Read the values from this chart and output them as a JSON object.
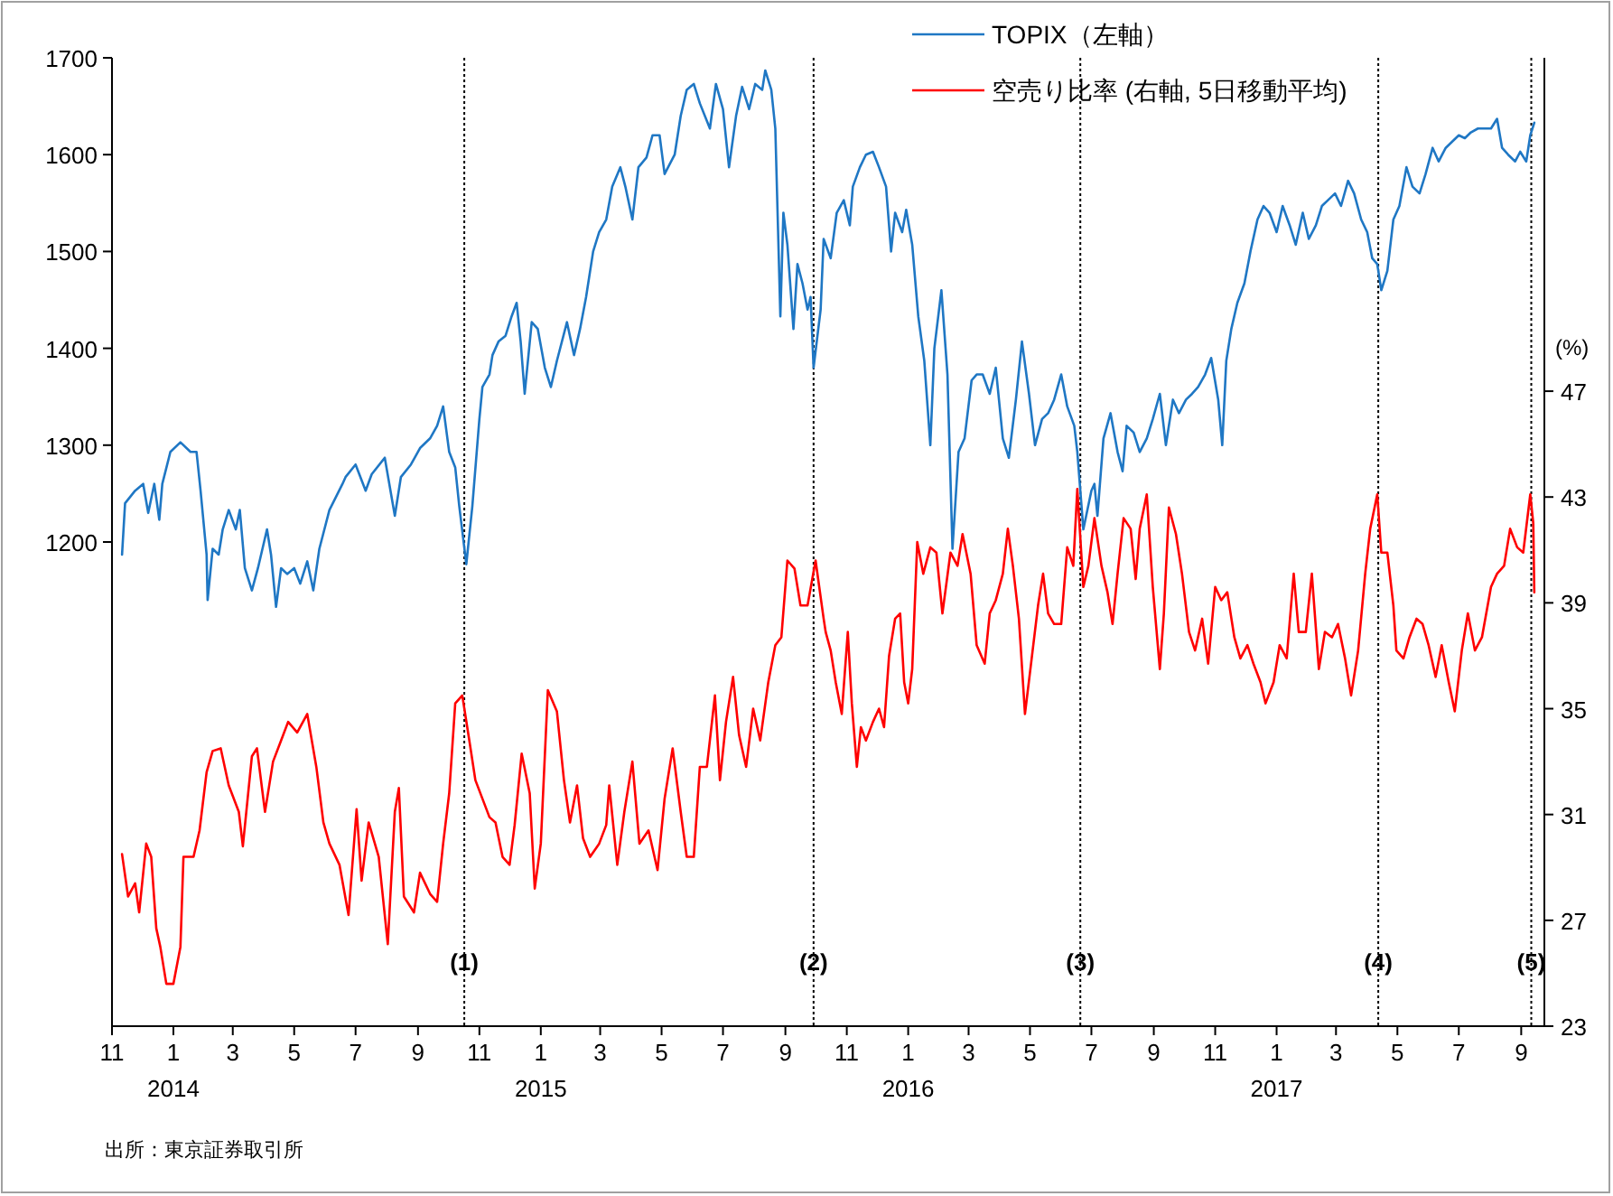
{
  "chart_data": {
    "type": "line",
    "xlim": [
      "2013-11-01",
      "2017-09-24"
    ],
    "xticks": [
      {
        "value": "2013-11",
        "label": "11"
      },
      {
        "value": "2014-01",
        "label": "1\n2014"
      },
      {
        "value": "2014-03",
        "label": "3"
      },
      {
        "value": "2014-05",
        "label": "5"
      },
      {
        "value": "2014-07",
        "label": "7"
      },
      {
        "value": "2014-09",
        "label": "9"
      },
      {
        "value": "2014-11",
        "label": "11"
      },
      {
        "value": "2015-01",
        "label": "1\n2015"
      },
      {
        "value": "2015-03",
        "label": "3"
      },
      {
        "value": "2015-05",
        "label": "5"
      },
      {
        "value": "2015-07",
        "label": "7"
      },
      {
        "value": "2015-09",
        "label": "9"
      },
      {
        "value": "2015-11",
        "label": "11"
      },
      {
        "value": "2016-01",
        "label": "1\n2016"
      },
      {
        "value": "2016-03",
        "label": "3"
      },
      {
        "value": "2016-05",
        "label": "5"
      },
      {
        "value": "2016-07",
        "label": "7"
      },
      {
        "value": "2016-09",
        "label": "9"
      },
      {
        "value": "2016-11",
        "label": "11"
      },
      {
        "value": "2017-01",
        "label": "1\n2017"
      },
      {
        "value": "2017-03",
        "label": "3"
      },
      {
        "value": "2017-05",
        "label": "5"
      },
      {
        "value": "2017-07",
        "label": "7"
      },
      {
        "value": "2017-09",
        "label": "9"
      }
    ],
    "ylim": [
      700,
      1700
    ],
    "yticks": [
      1200,
      1300,
      1400,
      1500,
      1600,
      1700
    ],
    "y2lim": [
      23,
      59.6
    ],
    "y2ticks": [
      23,
      27,
      31,
      35,
      39,
      43,
      47
    ],
    "y2label": "(%)",
    "legend": "top right",
    "ref_lines": [
      {
        "axis": "x",
        "value": "2014-10-17",
        "label": "(1)",
        "color": "#000000",
        "line_style": "dotted"
      },
      {
        "axis": "x",
        "value": "2015-09-29",
        "label": "(2)",
        "color": "#000000",
        "line_style": "dotted"
      },
      {
        "axis": "x",
        "value": "2016-06-20",
        "label": "(3)",
        "color": "#000000",
        "line_style": "dotted"
      },
      {
        "axis": "x",
        "value": "2017-04-12",
        "label": "(4)",
        "color": "#000000",
        "line_style": "dotted"
      },
      {
        "axis": "x",
        "value": "2017-09-11",
        "label": "(5)",
        "color": "#000000",
        "line_style": "dotted"
      }
    ],
    "annotations": [
      "出所：東京証券取引所"
    ],
    "series": [
      {
        "name": "TOPIX（左軸）",
        "color": "#1f77c4",
        "axis": "y",
        "x": [
          "2013-11-11",
          "2013-11-14",
          "2013-11-24",
          "2013-12-02",
          "2013-12-07",
          "2013-12-13",
          "2013-12-18",
          "2013-12-21",
          "2013-12-29",
          "2014-01-08",
          "2014-01-18",
          "2014-01-24",
          "2014-01-28",
          "2014-02-03",
          "2014-02-04",
          "2014-02-09",
          "2014-02-15",
          "2014-02-19",
          "2014-02-25",
          "2014-03-04",
          "2014-03-08",
          "2014-03-13",
          "2014-03-20",
          "2014-03-26",
          "2014-04-04",
          "2014-04-08",
          "2014-04-13",
          "2014-04-18",
          "2014-04-24",
          "2014-05-01",
          "2014-05-07",
          "2014-05-14",
          "2014-05-20",
          "2014-05-26",
          "2014-06-05",
          "2014-06-18",
          "2014-06-21",
          "2014-07-01",
          "2014-07-11",
          "2014-07-17",
          "2014-07-30",
          "2014-08-09",
          "2014-08-15",
          "2014-08-25",
          "2014-09-03",
          "2014-09-13",
          "2014-09-20",
          "2014-09-26",
          "2014-10-02",
          "2014-10-08",
          "2014-10-12",
          "2014-10-19",
          "2014-10-25",
          "2014-11-01",
          "2014-11-04",
          "2014-11-11",
          "2014-11-14",
          "2014-11-20",
          "2014-11-27",
          "2014-12-03",
          "2014-12-08",
          "2014-12-12",
          "2014-12-16",
          "2014-12-23",
          "2014-12-29",
          "2015-01-05",
          "2015-01-11",
          "2015-01-17",
          "2015-01-27",
          "2015-02-03",
          "2015-02-09",
          "2015-02-15",
          "2015-02-22",
          "2015-02-28",
          "2015-03-07",
          "2015-03-13",
          "2015-03-21",
          "2015-03-26",
          "2015-04-02",
          "2015-04-08",
          "2015-04-16",
          "2015-04-22",
          "2015-04-29",
          "2015-05-04",
          "2015-05-14",
          "2015-05-20",
          "2015-05-26",
          "2015-06-02",
          "2015-06-08",
          "2015-06-18",
          "2015-06-24",
          "2015-07-01",
          "2015-07-07",
          "2015-07-14",
          "2015-07-20",
          "2015-07-27",
          "2015-08-02",
          "2015-08-09",
          "2015-08-12",
          "2015-08-18",
          "2015-08-22",
          "2015-08-27",
          "2015-08-30",
          "2015-09-03",
          "2015-09-09",
          "2015-09-13",
          "2015-09-18",
          "2015-09-23",
          "2015-09-26",
          "2015-09-29",
          "2015-10-06",
          "2015-10-09",
          "2015-10-16",
          "2015-10-22",
          "2015-10-29",
          "2015-11-04",
          "2015-11-07",
          "2015-11-14",
          "2015-11-20",
          "2015-11-27",
          "2015-12-03",
          "2015-12-10",
          "2015-12-15",
          "2015-12-19",
          "2015-12-26",
          "2015-12-30",
          "2016-01-05",
          "2016-01-11",
          "2016-01-17",
          "2016-01-23",
          "2016-01-27",
          "2016-02-03",
          "2016-02-09",
          "2016-02-14",
          "2016-02-20",
          "2016-02-26",
          "2016-03-04",
          "2016-03-09",
          "2016-03-15",
          "2016-03-22",
          "2016-03-28",
          "2016-04-04",
          "2016-04-10",
          "2016-04-17",
          "2016-04-23",
          "2016-04-30",
          "2016-05-06",
          "2016-05-13",
          "2016-05-19",
          "2016-05-25",
          "2016-06-01",
          "2016-06-07",
          "2016-06-14",
          "2016-06-17",
          "2016-06-23",
          "2016-07-01",
          "2016-07-04",
          "2016-07-07",
          "2016-07-13",
          "2016-07-20",
          "2016-07-27",
          "2016-08-01",
          "2016-08-05",
          "2016-08-12",
          "2016-08-18",
          "2016-08-25",
          "2016-08-31",
          "2016-09-07",
          "2016-09-13",
          "2016-09-20",
          "2016-09-26",
          "2016-10-03",
          "2016-10-09",
          "2016-10-15",
          "2016-10-22",
          "2016-10-28",
          "2016-11-04",
          "2016-11-08",
          "2016-11-12",
          "2016-11-17",
          "2016-11-23",
          "2016-11-30",
          "2016-12-06",
          "2016-12-13",
          "2016-12-19",
          "2016-12-25",
          "2017-01-01",
          "2017-01-07",
          "2017-01-14",
          "2017-01-20",
          "2017-01-27",
          "2017-02-02",
          "2017-02-09",
          "2017-02-15",
          "2017-02-21",
          "2017-02-28",
          "2017-03-06",
          "2017-03-13",
          "2017-03-19",
          "2017-03-26",
          "2017-04-01",
          "2017-04-06",
          "2017-04-11",
          "2017-04-15",
          "2017-04-21",
          "2017-04-27",
          "2017-05-03",
          "2017-05-10",
          "2017-05-16",
          "2017-05-23",
          "2017-05-29",
          "2017-06-05",
          "2017-06-11",
          "2017-06-18",
          "2017-06-24",
          "2017-07-01",
          "2017-07-07",
          "2017-07-13",
          "2017-07-20",
          "2017-07-26",
          "2017-08-02",
          "2017-08-08",
          "2017-08-13",
          "2017-08-19",
          "2017-08-26",
          "2017-08-31",
          "2017-09-06",
          "2017-09-10",
          "2017-09-14"
        ],
        "values": [
          1187,
          1240,
          1253,
          1260,
          1230,
          1260,
          1223,
          1260,
          1293,
          1303,
          1293,
          1293,
          1253,
          1187,
          1140,
          1193,
          1187,
          1213,
          1233,
          1213,
          1233,
          1173,
          1150,
          1173,
          1213,
          1187,
          1133,
          1173,
          1167,
          1173,
          1157,
          1180,
          1150,
          1193,
          1233,
          1260,
          1267,
          1280,
          1253,
          1270,
          1287,
          1227,
          1267,
          1280,
          1297,
          1307,
          1320,
          1340,
          1293,
          1277,
          1237,
          1177,
          1237,
          1327,
          1360,
          1373,
          1393,
          1407,
          1413,
          1433,
          1447,
          1407,
          1353,
          1427,
          1420,
          1380,
          1360,
          1387,
          1427,
          1393,
          1420,
          1453,
          1500,
          1520,
          1533,
          1567,
          1587,
          1567,
          1533,
          1587,
          1597,
          1620,
          1620,
          1580,
          1600,
          1640,
          1667,
          1673,
          1653,
          1627,
          1673,
          1647,
          1587,
          1640,
          1670,
          1647,
          1673,
          1667,
          1687,
          1667,
          1627,
          1433,
          1540,
          1507,
          1420,
          1487,
          1467,
          1440,
          1453,
          1380,
          1440,
          1513,
          1493,
          1540,
          1553,
          1527,
          1567,
          1587,
          1600,
          1603,
          1587,
          1567,
          1500,
          1540,
          1520,
          1543,
          1507,
          1433,
          1387,
          1300,
          1400,
          1460,
          1373,
          1193,
          1293,
          1307,
          1367,
          1373,
          1373,
          1353,
          1380,
          1307,
          1287,
          1347,
          1407,
          1353,
          1300,
          1327,
          1333,
          1347,
          1373,
          1340,
          1320,
          1293,
          1213,
          1253,
          1260,
          1227,
          1307,
          1333,
          1293,
          1273,
          1320,
          1313,
          1293,
          1307,
          1327,
          1353,
          1300,
          1347,
          1333,
          1347,
          1353,
          1360,
          1373,
          1390,
          1347,
          1300,
          1387,
          1420,
          1447,
          1467,
          1500,
          1533,
          1547,
          1540,
          1520,
          1547,
          1527,
          1507,
          1540,
          1513,
          1527,
          1547,
          1553,
          1560,
          1547,
          1573,
          1560,
          1533,
          1520,
          1493,
          1487,
          1460,
          1480,
          1533,
          1547,
          1587,
          1567,
          1560,
          1580,
          1607,
          1593,
          1607,
          1613,
          1620,
          1617,
          1623,
          1627,
          1627,
          1627,
          1637,
          1607,
          1600,
          1593,
          1603,
          1593,
          1620,
          1633
        ]
      },
      {
        "name": "空売り比率 (右軸, 5日移動平均)",
        "color": "#ff0000",
        "axis": "y2",
        "x": [
          "2013-11-11",
          "2013-11-17",
          "2013-11-24",
          "2013-11-28",
          "2013-12-05",
          "2013-12-10",
          "2013-12-15",
          "2013-12-19",
          "2013-12-25",
          "2014-01-01",
          "2014-01-08",
          "2014-01-11",
          "2014-01-21",
          "2014-01-27",
          "2014-02-03",
          "2014-02-09",
          "2014-02-17",
          "2014-02-25",
          "2014-03-07",
          "2014-03-11",
          "2014-03-20",
          "2014-03-25",
          "2014-04-02",
          "2014-04-10",
          "2014-04-18",
          "2014-04-25",
          "2014-05-04",
          "2014-05-14",
          "2014-05-23",
          "2014-05-30",
          "2014-06-05",
          "2014-06-15",
          "2014-06-24",
          "2014-07-02",
          "2014-07-07",
          "2014-07-14",
          "2014-07-24",
          "2014-08-02",
          "2014-08-09",
          "2014-08-13",
          "2014-08-18",
          "2014-08-28",
          "2014-09-03",
          "2014-09-13",
          "2014-09-20",
          "2014-09-26",
          "2014-10-02",
          "2014-10-08",
          "2014-10-15",
          "2014-10-22",
          "2014-10-28",
          "2014-11-04",
          "2014-11-11",
          "2014-11-17",
          "2014-11-24",
          "2014-12-01",
          "2014-12-06",
          "2014-12-13",
          "2014-12-21",
          "2014-12-26",
          "2015-01-01",
          "2015-01-08",
          "2015-01-17",
          "2015-01-24",
          "2015-01-30",
          "2015-02-06",
          "2015-02-12",
          "2015-02-19",
          "2015-02-28",
          "2015-03-07",
          "2015-03-10",
          "2015-03-18",
          "2015-03-25",
          "2015-04-02",
          "2015-04-09",
          "2015-04-18",
          "2015-04-27",
          "2015-05-04",
          "2015-05-12",
          "2015-05-20",
          "2015-05-26",
          "2015-06-02",
          "2015-06-08",
          "2015-06-15",
          "2015-06-23",
          "2015-06-28",
          "2015-07-04",
          "2015-07-11",
          "2015-07-17",
          "2015-07-24",
          "2015-07-31",
          "2015-08-07",
          "2015-08-15",
          "2015-08-22",
          "2015-08-28",
          "2015-09-03",
          "2015-09-10",
          "2015-09-16",
          "2015-09-23",
          "2015-10-01",
          "2015-10-09",
          "2015-10-11",
          "2015-10-16",
          "2015-10-21",
          "2015-10-27",
          "2015-11-02",
          "2015-11-06",
          "2015-11-11",
          "2015-11-15",
          "2015-11-20",
          "2015-11-27",
          "2015-12-03",
          "2015-12-08",
          "2015-12-13",
          "2015-12-19",
          "2015-12-24",
          "2015-12-28",
          "2016-01-01",
          "2016-01-05",
          "2016-01-10",
          "2016-01-16",
          "2016-01-23",
          "2016-01-29",
          "2016-02-04",
          "2016-02-12",
          "2016-02-19",
          "2016-02-24",
          "2016-03-03",
          "2016-03-09",
          "2016-03-17",
          "2016-03-22",
          "2016-03-28",
          "2016-04-04",
          "2016-04-09",
          "2016-04-14",
          "2016-04-20",
          "2016-04-26",
          "2016-05-03",
          "2016-05-09",
          "2016-05-14",
          "2016-05-19",
          "2016-05-25",
          "2016-06-01",
          "2016-06-07",
          "2016-06-13",
          "2016-06-17",
          "2016-06-23",
          "2016-06-28",
          "2016-07-04",
          "2016-07-11",
          "2016-07-17",
          "2016-07-22",
          "2016-07-27",
          "2016-08-02",
          "2016-08-09",
          "2016-08-14",
          "2016-08-18",
          "2016-08-25",
          "2016-08-31",
          "2016-09-07",
          "2016-09-11",
          "2016-09-16",
          "2016-09-23",
          "2016-09-29",
          "2016-10-06",
          "2016-10-12",
          "2016-10-19",
          "2016-10-25",
          "2016-11-01",
          "2016-11-07",
          "2016-11-13",
          "2016-11-20",
          "2016-11-26",
          "2016-12-03",
          "2016-12-09",
          "2016-12-16",
          "2016-12-21",
          "2016-12-29",
          "2017-01-04",
          "2017-01-11",
          "2017-01-18",
          "2017-01-23",
          "2017-01-30",
          "2017-02-05",
          "2017-02-12",
          "2017-02-18",
          "2017-02-25",
          "2017-03-03",
          "2017-03-10",
          "2017-03-16",
          "2017-03-23",
          "2017-03-30",
          "2017-04-04",
          "2017-04-11",
          "2017-04-15",
          "2017-04-21",
          "2017-04-27",
          "2017-04-30",
          "2017-05-07",
          "2017-05-13",
          "2017-05-20",
          "2017-05-26",
          "2017-06-01",
          "2017-06-08",
          "2017-06-14",
          "2017-06-21",
          "2017-06-27",
          "2017-07-04",
          "2017-07-10",
          "2017-07-17",
          "2017-07-24",
          "2017-08-02",
          "2017-08-08",
          "2017-08-15",
          "2017-08-21",
          "2017-08-28",
          "2017-09-03",
          "2017-09-10",
          "2017-09-13",
          "2017-09-14"
        ],
        "values": [
          29.5,
          27.9,
          28.4,
          27.3,
          29.9,
          29.4,
          26.7,
          26.0,
          24.6,
          24.6,
          26.0,
          29.4,
          29.4,
          30.4,
          32.6,
          33.4,
          33.5,
          32.1,
          31.1,
          29.8,
          33.2,
          33.5,
          31.1,
          33.0,
          33.8,
          34.5,
          34.1,
          34.8,
          32.8,
          30.7,
          29.9,
          29.1,
          27.2,
          31.2,
          28.5,
          30.7,
          29.4,
          26.1,
          31.1,
          32.0,
          27.9,
          27.3,
          28.8,
          28.0,
          27.7,
          29.9,
          31.8,
          35.2,
          35.5,
          33.8,
          32.3,
          31.6,
          30.9,
          30.7,
          29.4,
          29.1,
          30.6,
          33.3,
          31.8,
          28.2,
          29.9,
          35.7,
          34.9,
          32.3,
          30.7,
          32.1,
          30.1,
          29.4,
          29.9,
          30.6,
          32.1,
          29.1,
          31.1,
          33.0,
          29.9,
          30.4,
          28.9,
          31.6,
          33.5,
          31.1,
          29.4,
          29.4,
          32.8,
          32.8,
          35.5,
          32.3,
          34.5,
          36.2,
          34.0,
          32.8,
          35.0,
          33.8,
          36.0,
          37.4,
          37.7,
          40.6,
          40.3,
          38.9,
          38.9,
          40.6,
          38.4,
          37.9,
          37.2,
          36.0,
          34.8,
          37.9,
          35.2,
          32.8,
          34.3,
          33.8,
          34.5,
          35.0,
          34.3,
          37.0,
          38.4,
          38.6,
          36.0,
          35.2,
          36.5,
          41.3,
          40.1,
          41.1,
          40.9,
          38.6,
          40.9,
          40.4,
          41.6,
          40.1,
          37.4,
          36.7,
          38.6,
          39.1,
          40.1,
          41.8,
          40.4,
          38.4,
          34.8,
          37.0,
          38.9,
          40.1,
          38.6,
          38.2,
          38.2,
          41.1,
          40.4,
          43.3,
          39.6,
          40.4,
          42.2,
          40.4,
          39.4,
          38.2,
          40.1,
          42.2,
          41.8,
          39.9,
          41.8,
          43.1,
          39.6,
          36.5,
          38.6,
          42.6,
          41.6,
          40.1,
          37.9,
          37.2,
          38.4,
          36.7,
          39.6,
          39.1,
          39.4,
          37.7,
          36.9,
          37.4,
          36.7,
          36.0,
          35.2,
          36.0,
          37.4,
          36.9,
          40.1,
          37.9,
          37.9,
          40.1,
          36.5,
          37.9,
          37.7,
          38.2,
          36.9,
          35.5,
          37.2,
          40.1,
          41.8,
          43.1,
          40.9,
          40.9,
          38.9,
          37.2,
          36.9,
          37.7,
          38.4,
          38.2,
          37.4,
          36.2,
          37.4,
          36.0,
          34.9,
          37.2,
          38.6,
          37.2,
          37.7,
          39.6,
          40.1,
          40.4,
          41.8,
          41.1,
          40.9,
          43.1,
          42.0,
          39.4
        ]
      }
    ]
  }
}
